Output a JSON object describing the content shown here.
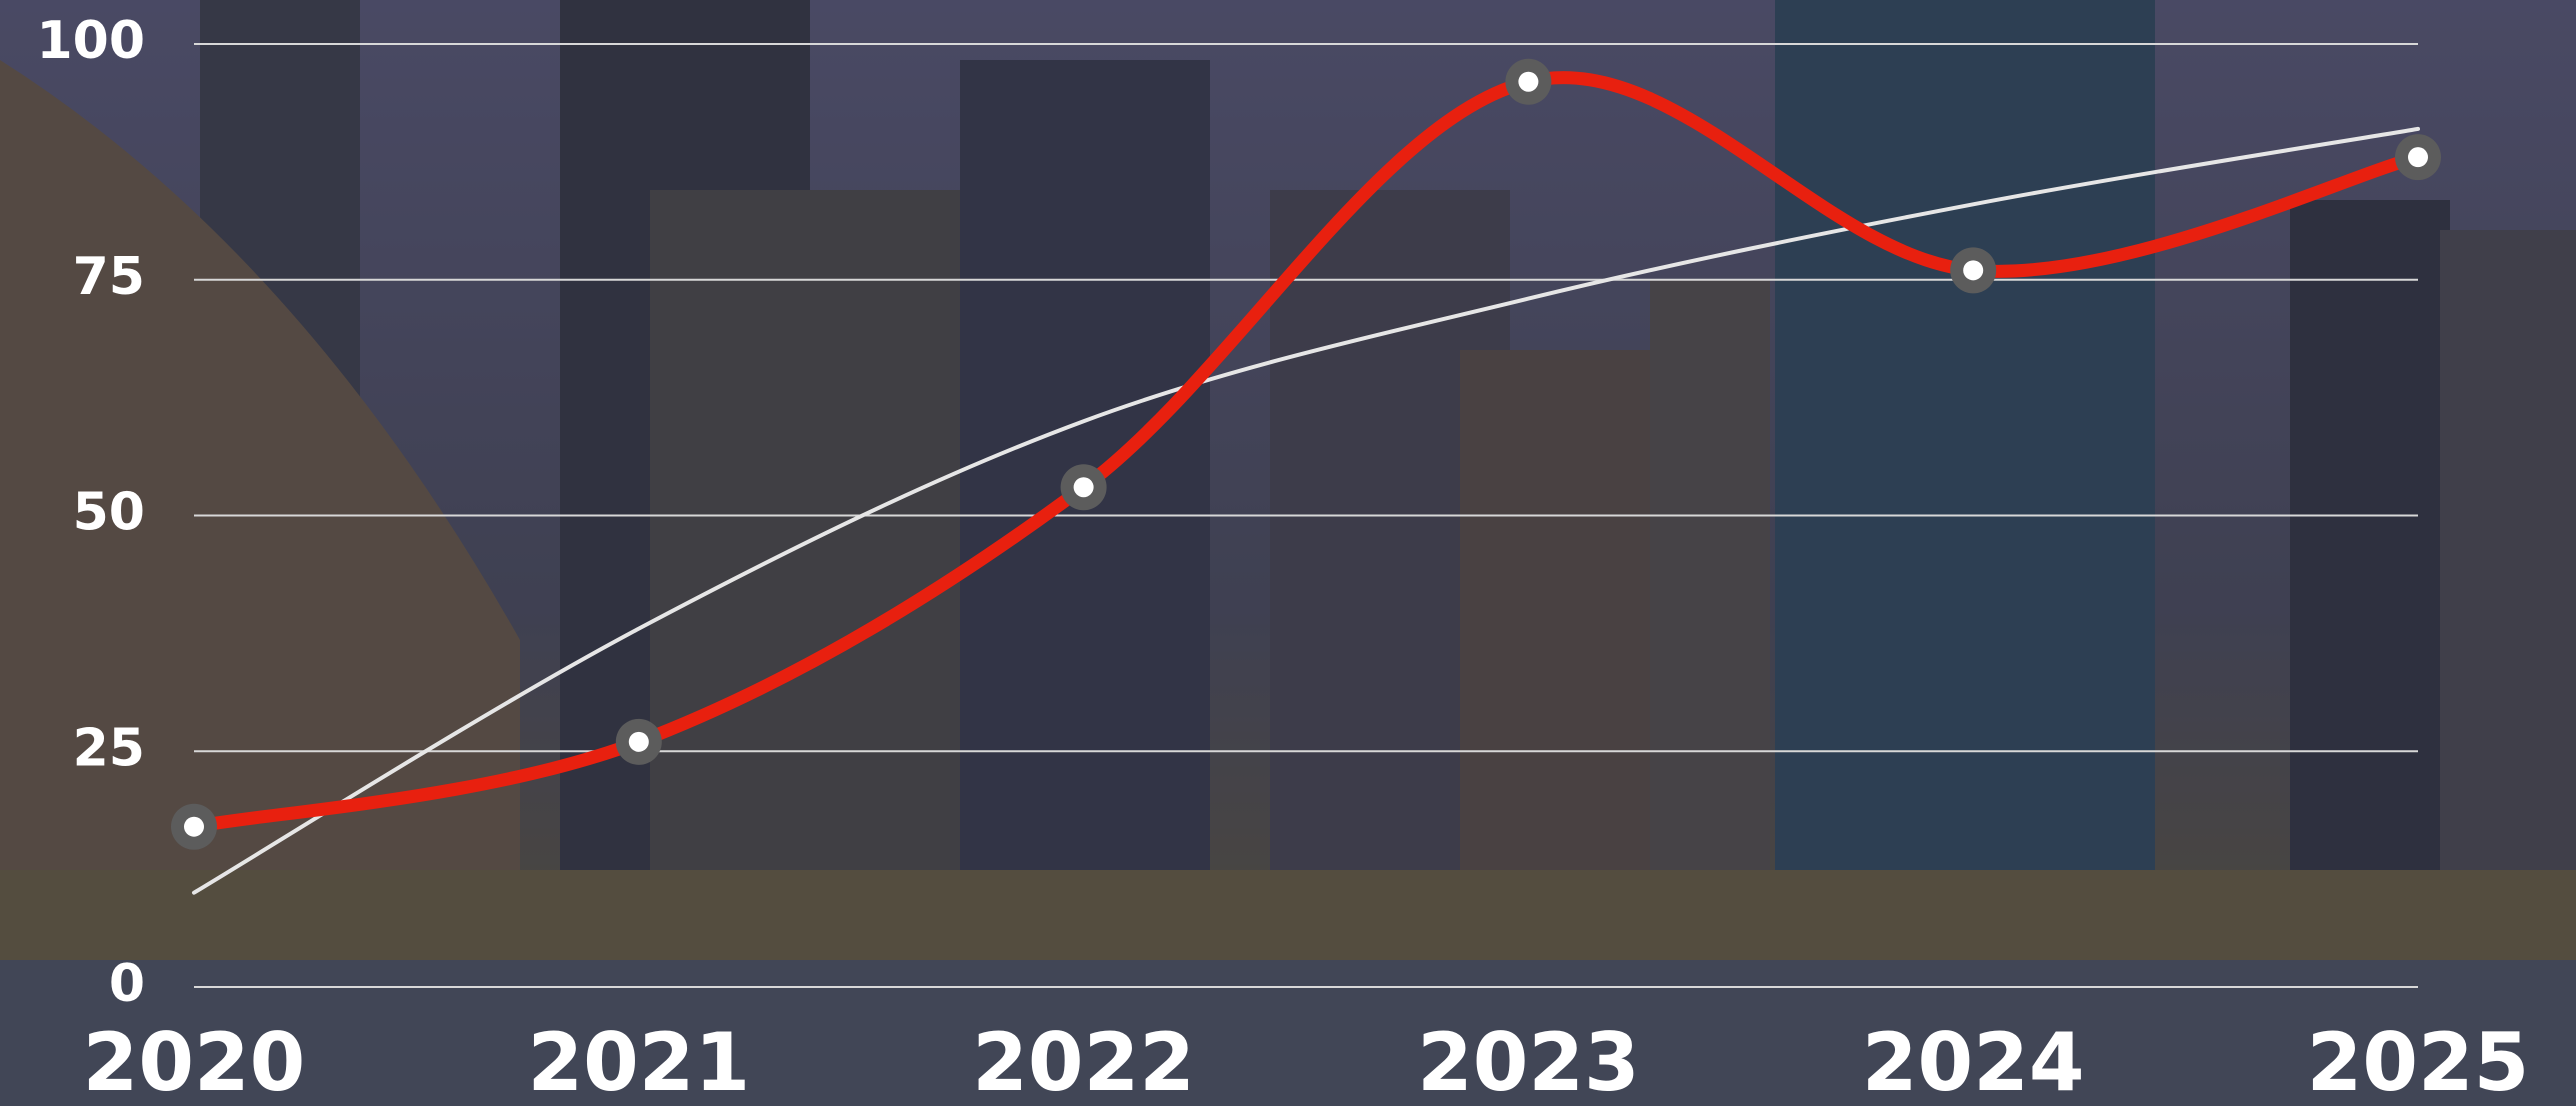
{
  "chart_data": {
    "type": "line",
    "categories": [
      "2020",
      "2021",
      "2022",
      "2023",
      "2024",
      "2025"
    ],
    "series": [
      {
        "color": "#e8200f",
        "values": [
          17,
          26,
          53,
          96,
          76,
          88
        ]
      },
      {
        "color": "#e6e6e6",
        "values": [
          10,
          38,
          60,
          73,
          83,
          91
        ]
      }
    ],
    "ylim": [
      0,
      100
    ],
    "yticks": [
      0,
      25,
      50,
      75,
      100
    ],
    "grid": true
  }
}
